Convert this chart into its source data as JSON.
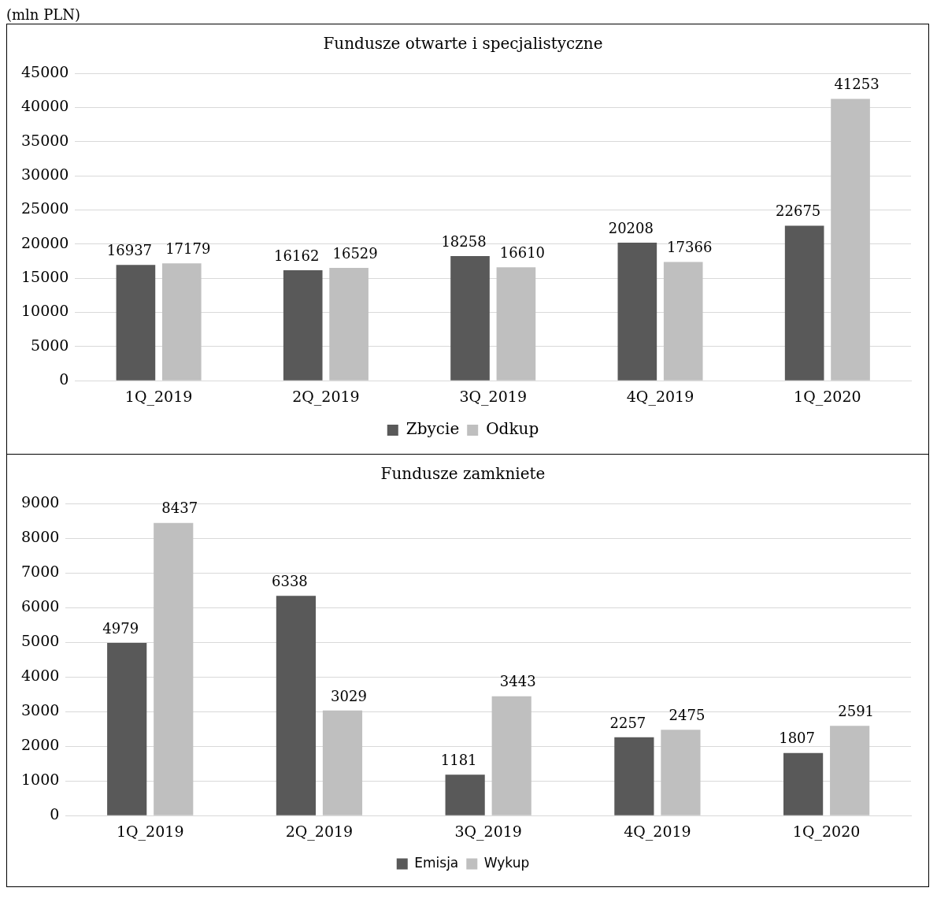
{
  "chart_data": [
    {
      "type": "bar",
      "title": "Fundusze otwarte i specjalistyczne",
      "annotations": [
        "(mln PLN)"
      ],
      "categories": [
        "1Q_2019",
        "2Q_2019",
        "3Q_2019",
        "4Q_2019",
        "1Q_2020"
      ],
      "series": [
        {
          "name": "Zbycie",
          "color": "#595959",
          "values": [
            16937,
            16162,
            18258,
            20208,
            22675
          ]
        },
        {
          "name": "Odkup",
          "color": "#bfbfbf",
          "values": [
            17179,
            16529,
            16610,
            17366,
            41253
          ]
        }
      ],
      "ylim": [
        0,
        45000
      ],
      "yticks": [
        0,
        5000,
        10000,
        15000,
        20000,
        25000,
        30000,
        35000,
        40000,
        45000
      ],
      "grid": "y",
      "legend": "bottom",
      "data_labels": true
    },
    {
      "type": "bar",
      "title": "Fundusze zamkniete",
      "categories": [
        "1Q_2019",
        "2Q_2019",
        "3Q_2019",
        "4Q_2019",
        "1Q_2020"
      ],
      "series": [
        {
          "name": "Emisja",
          "color": "#595959",
          "values": [
            4979,
            6338,
            1181,
            2257,
            1807
          ]
        },
        {
          "name": "Wykup",
          "color": "#bfbfbf",
          "values": [
            8437,
            3029,
            3443,
            2475,
            2591
          ]
        }
      ],
      "ylim": [
        0,
        9000
      ],
      "yticks": [
        0,
        1000,
        2000,
        3000,
        4000,
        5000,
        6000,
        7000,
        8000,
        9000
      ],
      "grid": "y",
      "legend": "bottom",
      "data_labels": true
    }
  ]
}
